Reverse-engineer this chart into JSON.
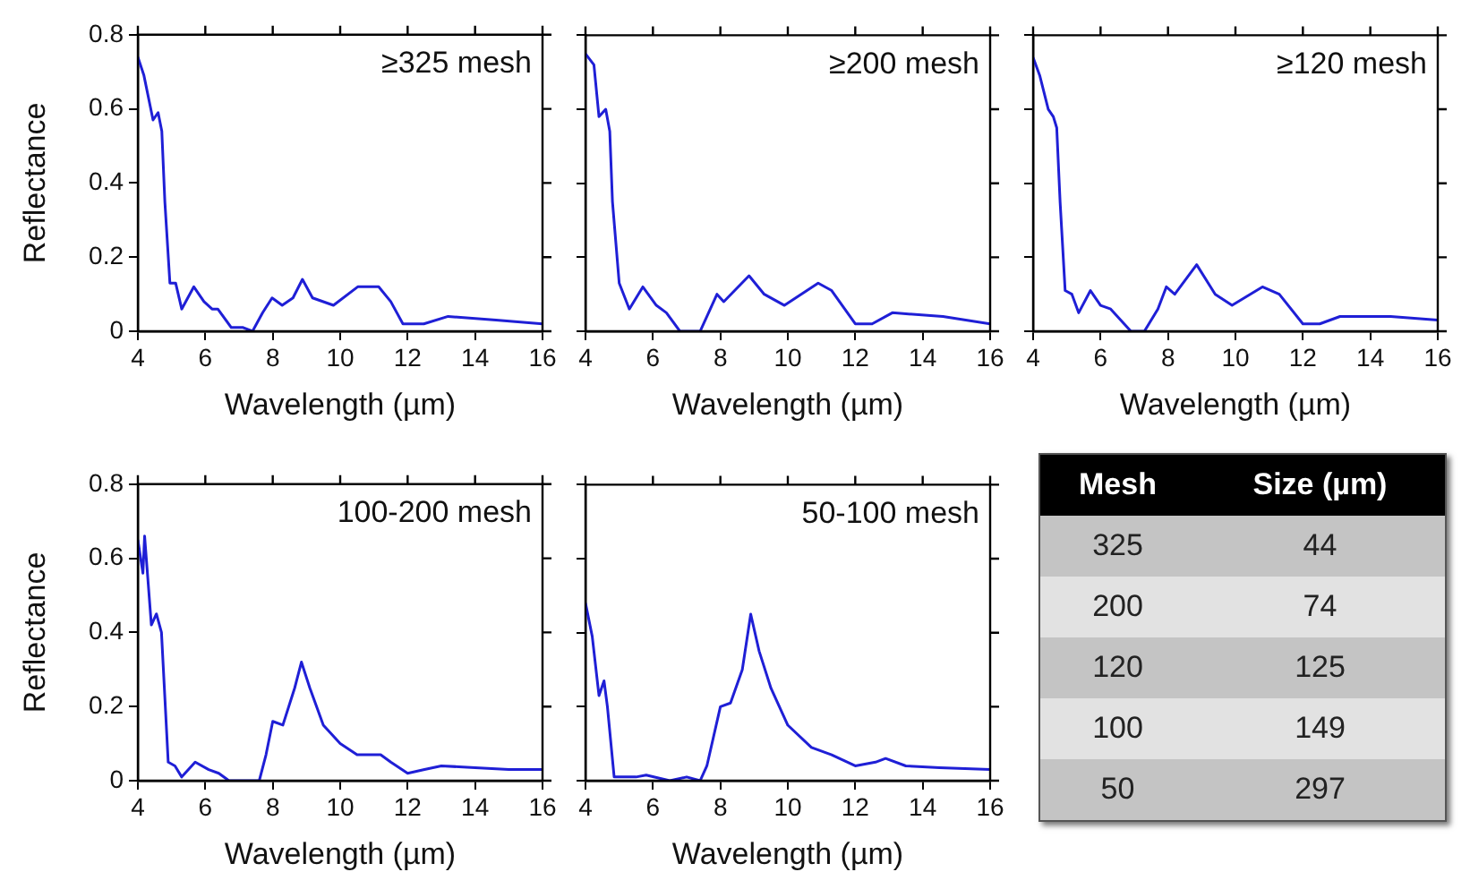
{
  "chart_data": [
    {
      "type": "line",
      "xlabel": "Wavelength (µm)",
      "ylabel": "Reflectance",
      "annotations": [
        "≥325 mesh"
      ],
      "xlim": [
        4,
        16
      ],
      "ylim": [
        0,
        0.8
      ],
      "xticks": [
        4,
        6,
        8,
        10,
        12,
        14,
        16
      ],
      "yticks": [
        0,
        0.2,
        0.4,
        0.6,
        0.8
      ],
      "x": [
        4,
        4.18,
        4.45,
        4.6,
        4.71,
        4.8,
        4.95,
        5.12,
        5.3,
        5.66,
        5.96,
        6.2,
        6.37,
        6.77,
        7.12,
        7.4,
        7.7,
        7.98,
        8.28,
        8.6,
        8.88,
        9.18,
        9.8,
        10.52,
        11.14,
        11.5,
        11.86,
        12.48,
        13.2,
        14.62,
        16
      ],
      "series": [
        {
          "color": "#1f1fd6",
          "values": [
            0.74,
            0.69,
            0.57,
            0.59,
            0.54,
            0.35,
            0.13,
            0.13,
            0.06,
            0.12,
            0.08,
            0.06,
            0.06,
            0.01,
            0.01,
            0,
            0.05,
            0.09,
            0.07,
            0.09,
            0.14,
            0.09,
            0.07,
            0.12,
            0.12,
            0.08,
            0.02,
            0.02,
            0.04,
            0.03,
            0.02
          ]
        }
      ]
    },
    {
      "type": "line",
      "xlabel": "Wavelength (µm)",
      "annotations": [
        "≥200 mesh"
      ],
      "xlim": [
        4,
        16
      ],
      "ylim": [
        0,
        0.8
      ],
      "xticks": [
        4,
        6,
        8,
        10,
        12,
        14,
        16
      ],
      "yticks": [
        0,
        0.2,
        0.4,
        0.6,
        0.8
      ],
      "tick_labels": "x",
      "x": [
        4,
        4.25,
        4.4,
        4.6,
        4.72,
        4.8,
        5.0,
        5.3,
        5.7,
        6.1,
        6.4,
        6.8,
        7.4,
        7.9,
        8.1,
        8.85,
        9.3,
        9.9,
        10.9,
        11.3,
        12,
        12.5,
        13.1,
        14.6,
        16
      ],
      "series": [
        {
          "color": "#1f1fd6",
          "values": [
            0.75,
            0.72,
            0.58,
            0.6,
            0.54,
            0.35,
            0.13,
            0.06,
            0.12,
            0.07,
            0.05,
            0,
            0,
            0.1,
            0.08,
            0.15,
            0.1,
            0.07,
            0.13,
            0.11,
            0.02,
            0.02,
            0.05,
            0.04,
            0.02
          ]
        }
      ]
    },
    {
      "type": "line",
      "xlabel": "Wavelength (µm)",
      "annotations": [
        "≥120 mesh"
      ],
      "xlim": [
        4,
        16
      ],
      "ylim": [
        0,
        0.8
      ],
      "xticks": [
        4,
        6,
        8,
        10,
        12,
        14,
        16
      ],
      "yticks": [
        0,
        0.2,
        0.4,
        0.6,
        0.8
      ],
      "tick_labels": "x",
      "x": [
        4,
        4.2,
        4.45,
        4.6,
        4.7,
        4.8,
        4.95,
        5.15,
        5.35,
        5.7,
        6.0,
        6.3,
        6.9,
        7.3,
        7.7,
        7.95,
        8.2,
        8.85,
        9.4,
        9.9,
        10.8,
        11.3,
        12,
        12.5,
        13.1,
        14.6,
        16
      ],
      "series": [
        {
          "color": "#1f1fd6",
          "values": [
            0.74,
            0.69,
            0.6,
            0.58,
            0.55,
            0.35,
            0.11,
            0.1,
            0.05,
            0.11,
            0.07,
            0.06,
            0,
            0,
            0.06,
            0.12,
            0.1,
            0.18,
            0.1,
            0.07,
            0.12,
            0.1,
            0.02,
            0.02,
            0.04,
            0.04,
            0.03
          ]
        }
      ]
    },
    {
      "type": "line",
      "xlabel": "Wavelength (µm)",
      "ylabel": "Reflectance",
      "annotations": [
        "100-200 mesh"
      ],
      "xlim": [
        4,
        16
      ],
      "ylim": [
        0,
        0.8
      ],
      "xticks": [
        4,
        6,
        8,
        10,
        12,
        14,
        16
      ],
      "yticks": [
        0,
        0.2,
        0.4,
        0.6,
        0.8
      ],
      "x": [
        4,
        4.15,
        4.2,
        4.4,
        4.55,
        4.7,
        4.9,
        5.1,
        5.3,
        5.7,
        6.1,
        6.4,
        6.7,
        7.6,
        7.8,
        8.0,
        8.3,
        8.65,
        8.85,
        9.1,
        9.5,
        10,
        10.5,
        11.2,
        11.5,
        12,
        12.5,
        13,
        14,
        15,
        16
      ],
      "series": [
        {
          "color": "#1f1fd6",
          "values": [
            0.65,
            0.56,
            0.66,
            0.42,
            0.45,
            0.4,
            0.05,
            0.04,
            0.01,
            0.05,
            0.03,
            0.02,
            0,
            0,
            0.07,
            0.16,
            0.15,
            0.25,
            0.32,
            0.25,
            0.15,
            0.1,
            0.07,
            0.07,
            0.05,
            0.02,
            0.03,
            0.04,
            0.035,
            0.03,
            0.03
          ]
        }
      ]
    },
    {
      "type": "line",
      "xlabel": "Wavelength (µm)",
      "annotations": [
        "50-100 mesh"
      ],
      "xlim": [
        4,
        16
      ],
      "ylim": [
        0,
        0.8
      ],
      "xticks": [
        4,
        6,
        8,
        10,
        12,
        14,
        16
      ],
      "yticks": [
        0,
        0.2,
        0.4,
        0.6,
        0.8
      ],
      "tick_labels": "x",
      "x": [
        4,
        4.2,
        4.4,
        4.55,
        4.65,
        4.85,
        5.5,
        5.8,
        6.5,
        7.0,
        7.4,
        7.6,
        8.0,
        8.3,
        8.65,
        8.9,
        9.15,
        9.5,
        10,
        10.7,
        11.3,
        12,
        12.6,
        12.9,
        13.5,
        14.5,
        16
      ],
      "series": [
        {
          "color": "#1f1fd6",
          "values": [
            0.48,
            0.39,
            0.23,
            0.27,
            0.2,
            0.01,
            0.01,
            0.015,
            0,
            0.01,
            0,
            0.04,
            0.2,
            0.21,
            0.3,
            0.45,
            0.35,
            0.25,
            0.15,
            0.09,
            0.07,
            0.04,
            0.05,
            0.06,
            0.04,
            0.035,
            0.03
          ]
        }
      ]
    },
    {
      "type": "other",
      "categories": [
        "Mesh",
        "Size (µm)"
      ],
      "annotations": [
        "325",
        "44",
        "200",
        "74",
        "120",
        "125",
        "100",
        "149",
        "50",
        "297"
      ]
    }
  ]
}
